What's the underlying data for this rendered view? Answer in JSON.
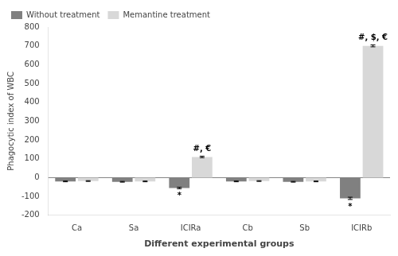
{
  "chart_data": {
    "type": "bar",
    "categories": [
      "Ca",
      "Sa",
      "ICIRa",
      "Cb",
      "Sb",
      "ICIRb"
    ],
    "series": [
      {
        "name": "Without treatment",
        "color": "#808080",
        "values": [
          -20,
          -22,
          -55,
          -20,
          -22,
          -110
        ],
        "errors": [
          2,
          2,
          4,
          2,
          2,
          6
        ]
      },
      {
        "name": "Memantine treatment",
        "color": "#d8d8d8",
        "values": [
          -18,
          -20,
          110,
          -18,
          -20,
          700
        ],
        "errors": [
          2,
          2,
          4,
          2,
          2,
          5
        ]
      }
    ],
    "ylim": [
      -200,
      800
    ],
    "yticks": [
      -200,
      -100,
      0,
      100,
      200,
      300,
      400,
      500,
      600,
      700,
      800
    ],
    "ylabel": "Phagocytic index of WBC",
    "xlabel": "Different experimental groups",
    "legend": "upper left",
    "grid": false,
    "reference_lines": [
      0
    ],
    "annotations": [
      {
        "category": "ICIRa",
        "series": "Memantine treatment",
        "text": "#, €"
      },
      {
        "category": "ICIRa",
        "series": "Without treatment",
        "text": "*"
      },
      {
        "category": "ICIRb",
        "series": "Memantine treatment",
        "text": "#, $, €"
      },
      {
        "category": "ICIRb",
        "series": "Without treatment",
        "text": "*"
      }
    ]
  }
}
